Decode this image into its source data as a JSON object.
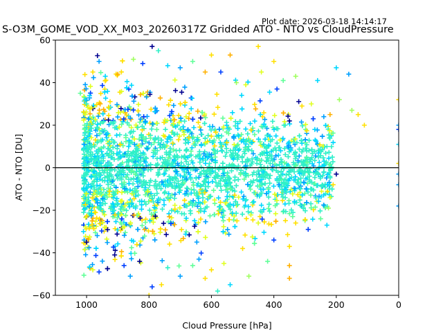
{
  "plot_date": "Plot date: 2026-03-18 14:14:17",
  "chart_data": {
    "type": "scatter",
    "title": "S-O3M_GOME_VOD_XX_M03_20260317Z Gridded ATO - NTO vs CloudPressure",
    "xlabel": "Cloud Pressure [hPa]",
    "ylabel": "ATO - NTO [DU]",
    "xlim": [
      1100,
      0
    ],
    "ylim": [
      -60,
      60
    ],
    "x_inverted": true,
    "xticks": [
      1000,
      800,
      600,
      400,
      200,
      0
    ],
    "yticks": [
      -60,
      -40,
      -20,
      0,
      20,
      40,
      60
    ],
    "grid": false,
    "marker": "+",
    "reference_line_y": 0,
    "colors": [
      "#00008f",
      "#0040ff",
      "#00a0ff",
      "#00d8ff",
      "#30f0c8",
      "#60ff98",
      "#a0ff60",
      "#e0ff20",
      "#ffe000",
      "#ffb000"
    ],
    "points": [
      {
        "x": 1020,
        "y": 35,
        "c": 5
      },
      {
        "x": 1000,
        "y": 30,
        "c": 4
      },
      {
        "x": 980,
        "y": 45,
        "c": 8
      },
      {
        "x": 960,
        "y": 50,
        "c": 2
      },
      {
        "x": 940,
        "y": 43,
        "c": 3
      },
      {
        "x": 900,
        "y": 44,
        "c": 9
      },
      {
        "x": 850,
        "y": 51,
        "c": 6
      },
      {
        "x": 820,
        "y": 49,
        "c": 1
      },
      {
        "x": 790,
        "y": 57,
        "c": 0
      },
      {
        "x": 770,
        "y": 55,
        "c": 4
      },
      {
        "x": 740,
        "y": 48,
        "c": 3
      },
      {
        "x": 700,
        "y": 47,
        "c": 2
      },
      {
        "x": 660,
        "y": 50,
        "c": 5
      },
      {
        "x": 620,
        "y": 45,
        "c": 9
      },
      {
        "x": 600,
        "y": 53,
        "c": 8
      },
      {
        "x": 570,
        "y": 45,
        "c": 1
      },
      {
        "x": 540,
        "y": 53,
        "c": 9
      },
      {
        "x": 520,
        "y": 40,
        "c": 6
      },
      {
        "x": 490,
        "y": 39,
        "c": 7
      },
      {
        "x": 450,
        "y": 57,
        "c": 8
      },
      {
        "x": 440,
        "y": 45,
        "c": 7
      },
      {
        "x": 400,
        "y": 50,
        "c": 8
      },
      {
        "x": 390,
        "y": 37,
        "c": 1
      },
      {
        "x": 370,
        "y": 41,
        "c": 5
      },
      {
        "x": 350,
        "y": 22,
        "c": 0
      },
      {
        "x": 330,
        "y": 43,
        "c": 6
      },
      {
        "x": 310,
        "y": 29,
        "c": 8
      },
      {
        "x": 280,
        "y": 30,
        "c": 7
      },
      {
        "x": 260,
        "y": 41,
        "c": 3
      },
      {
        "x": 240,
        "y": 24,
        "c": 2
      },
      {
        "x": 230,
        "y": 10,
        "c": 4
      },
      {
        "x": 220,
        "y": 25,
        "c": 9
      },
      {
        "x": 200,
        "y": 47,
        "c": 3
      },
      {
        "x": 190,
        "y": 32,
        "c": 6
      },
      {
        "x": 160,
        "y": 44,
        "c": 2
      },
      {
        "x": 150,
        "y": 27,
        "c": 6
      },
      {
        "x": 130,
        "y": 25,
        "c": 8
      },
      {
        "x": 110,
        "y": 20,
        "c": 8
      },
      {
        "x": 0,
        "y": 32,
        "c": 8
      },
      {
        "x": 0,
        "y": 20,
        "c": 2
      },
      {
        "x": 0,
        "y": 18,
        "c": 1
      },
      {
        "x": 0,
        "y": 11,
        "c": 3
      },
      {
        "x": 0,
        "y": 2,
        "c": 8
      },
      {
        "x": 0,
        "y": -3,
        "c": 2
      },
      {
        "x": 0,
        "y": -8,
        "c": 2
      },
      {
        "x": 0,
        "y": -18,
        "c": 2
      },
      {
        "x": 200,
        "y": -3,
        "c": 0
      },
      {
        "x": 210,
        "y": -8,
        "c": 8
      },
      {
        "x": 220,
        "y": -14,
        "c": 7
      },
      {
        "x": 225,
        "y": -19,
        "c": 6
      },
      {
        "x": 230,
        "y": -27,
        "c": 3
      },
      {
        "x": 250,
        "y": -24,
        "c": 5
      },
      {
        "x": 290,
        "y": -29,
        "c": 1
      },
      {
        "x": 330,
        "y": -26,
        "c": 8
      },
      {
        "x": 350,
        "y": -37,
        "c": 8
      },
      {
        "x": 350,
        "y": -46,
        "c": 9
      },
      {
        "x": 350,
        "y": -52,
        "c": 9
      },
      {
        "x": 400,
        "y": -34,
        "c": 1
      },
      {
        "x": 420,
        "y": -44,
        "c": 5
      },
      {
        "x": 450,
        "y": -26,
        "c": 7
      },
      {
        "x": 480,
        "y": -51,
        "c": 6
      },
      {
        "x": 500,
        "y": -38,
        "c": 8
      },
      {
        "x": 540,
        "y": -55,
        "c": 3
      },
      {
        "x": 560,
        "y": -45,
        "c": 7
      },
      {
        "x": 580,
        "y": -58,
        "c": 4
      },
      {
        "x": 600,
        "y": -48,
        "c": 8
      },
      {
        "x": 620,
        "y": -52,
        "c": 8
      },
      {
        "x": 640,
        "y": -43,
        "c": 2
      },
      {
        "x": 660,
        "y": -46,
        "c": 5
      },
      {
        "x": 700,
        "y": -51,
        "c": 2
      },
      {
        "x": 740,
        "y": -47,
        "c": 4
      },
      {
        "x": 760,
        "y": -55,
        "c": 8
      },
      {
        "x": 790,
        "y": -56,
        "c": 1
      },
      {
        "x": 800,
        "y": -60,
        "c": 8
      },
      {
        "x": 830,
        "y": -44,
        "c": 0
      },
      {
        "x": 860,
        "y": -51,
        "c": 2
      },
      {
        "x": 880,
        "y": -46,
        "c": 1
      },
      {
        "x": 910,
        "y": -41,
        "c": 0
      },
      {
        "x": 960,
        "y": -49,
        "c": 1
      },
      {
        "x": 980,
        "y": -48,
        "c": 7
      },
      {
        "x": 1000,
        "y": -35,
        "c": 0
      },
      {
        "x": 1010,
        "y": -30,
        "c": 3
      }
    ]
  }
}
